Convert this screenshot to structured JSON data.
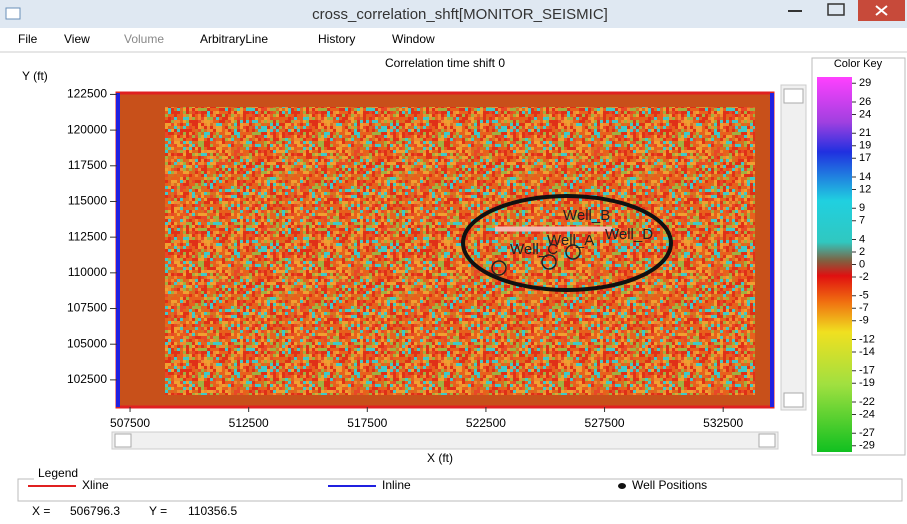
{
  "window": {
    "title": "cross_correlation_shft[MONITOR_SEISMIC]",
    "menu": [
      "File",
      "View",
      "Volume",
      "ArbitraryLine",
      "History",
      "Window"
    ]
  },
  "chart_data": {
    "type": "map",
    "title": "Correlation time shift 0",
    "ylabel": "Y (ft)",
    "xlabel": "X (ft)",
    "xlim": [
      506950,
      534600
    ],
    "ylim": [
      100600,
      122600
    ],
    "xticks": [
      507500,
      512500,
      517500,
      522500,
      527500,
      532500
    ],
    "yticks": [
      102500,
      105000,
      107500,
      110000,
      112500,
      115000,
      117500,
      120000,
      122500
    ],
    "wells": [
      "Well_B",
      "Well_D",
      "Well_A",
      "Well_C"
    ],
    "colorbar": {
      "title": "Color Key",
      "clim": [
        -30,
        30
      ],
      "ticks": [
        29,
        26,
        24,
        21,
        19,
        17,
        14,
        12,
        9,
        7,
        4,
        2,
        0,
        -2,
        -5,
        -7,
        -9,
        -12,
        -14,
        -17,
        -19,
        -22,
        -24,
        -27,
        -29
      ]
    },
    "legend": {
      "title": "Legend",
      "items": [
        "Xline",
        "Inline",
        "Well Positions"
      ]
    }
  },
  "status": {
    "x_label": "X =",
    "x": 506796.3,
    "y_label": "Y =",
    "y": 110356.5
  }
}
